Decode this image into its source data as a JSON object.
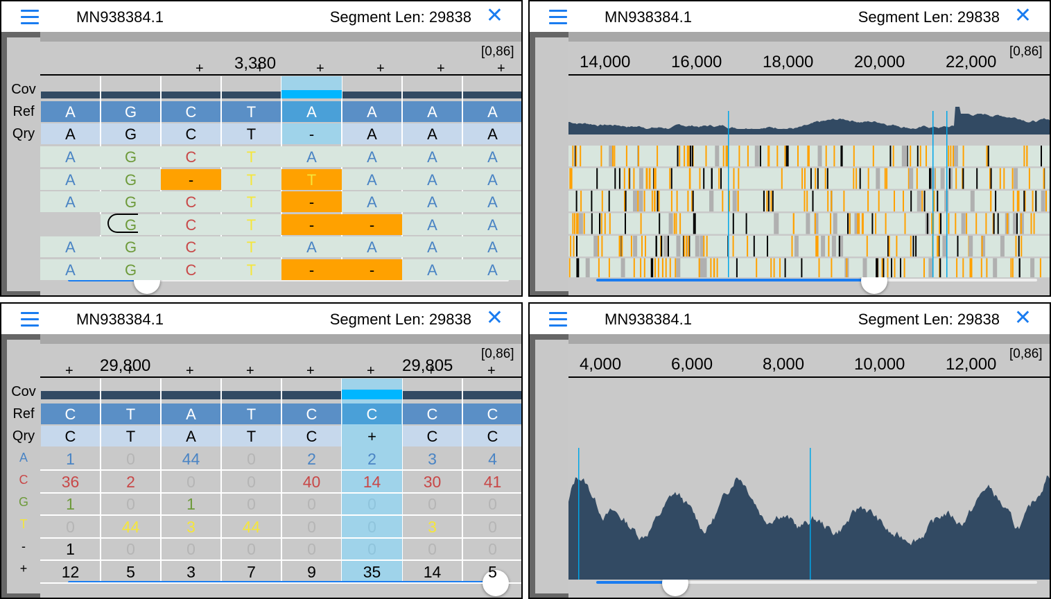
{
  "colors": {
    "accent": "#1a7cf0",
    "ref": "#5a8fc6",
    "qry": "#c6d8ec",
    "highlight": "#9fd3ea",
    "coverage": "#324a63",
    "insert": "#ffa100",
    "read_bg": "#d8e6de",
    "base_A": "#4a84c4",
    "base_C": "#c84848",
    "base_G": "#6d9a3a",
    "base_T": "#f5e63a"
  },
  "panels": [
    {
      "title": "MN938384.1",
      "segment_len": "Segment Len: 29838",
      "range": "[0,86]"
    },
    {
      "title": "MN938384.1",
      "segment_len": "Segment Len: 29838",
      "range": "[0,86]"
    },
    {
      "title": "MN938384.1",
      "segment_len": "Segment Len: 29838",
      "range": "[0,86]"
    },
    {
      "title": "MN938384.1",
      "segment_len": "Segment Len: 29838",
      "range": "[0,86]"
    }
  ],
  "icons": {
    "menu": "hamburger-icon",
    "close": "close-icon"
  },
  "p1": {
    "row_labels": [
      "Cov",
      "Ref",
      "Qry"
    ],
    "position_label": "3,380",
    "tick_marks": [
      "+",
      "+",
      "+",
      "+",
      "+",
      "+"
    ],
    "ref": [
      "A",
      "G",
      "C",
      "T",
      "A",
      "A",
      "A",
      "A"
    ],
    "qry": [
      "A",
      "G",
      "C",
      "T",
      "-",
      "A",
      "A",
      "A"
    ],
    "reads": [
      [
        "A",
        "G",
        "C",
        "T",
        "A",
        "A",
        "A",
        "A"
      ],
      [
        "A",
        "G",
        "-",
        "T",
        "T",
        "A",
        "A",
        "A"
      ],
      [
        "A",
        "G",
        "C",
        "T",
        "-",
        "A",
        "A",
        "A"
      ],
      [
        "",
        "G",
        "C",
        "T",
        "-",
        "-",
        "A",
        "A"
      ],
      [
        "A",
        "G",
        "C",
        "T",
        "A",
        "A",
        "A",
        "A"
      ],
      [
        "A",
        "G",
        "C",
        "T",
        "-",
        "-",
        "A",
        "A"
      ]
    ],
    "slider": 0.18
  },
  "p2": {
    "axis_ticks": [
      "14,000",
      "16,000",
      "18,000",
      "20,000",
      "22,000"
    ],
    "slider": 0.63
  },
  "p3": {
    "row_labels": [
      "Cov",
      "Ref",
      "Qry",
      "A",
      "C",
      "G",
      "T",
      "-",
      "+"
    ],
    "position_labels": [
      "29,800",
      "29,805"
    ],
    "tick_marks": [
      "+",
      "+",
      "+",
      "+",
      "+",
      "+",
      "+",
      "+"
    ],
    "ref": [
      "C",
      "T",
      "A",
      "T",
      "C",
      "C",
      "C",
      "C"
    ],
    "qry": [
      "C",
      "T",
      "A",
      "T",
      "C",
      "+",
      "C",
      "C"
    ],
    "counts": {
      "A": [
        "1",
        "0",
        "44",
        "0",
        "2",
        "2",
        "3",
        "4"
      ],
      "C": [
        "36",
        "2",
        "0",
        "0",
        "40",
        "14",
        "30",
        "41"
      ],
      "G": [
        "1",
        "0",
        "1",
        "0",
        "0",
        "0",
        "0",
        "0"
      ],
      "T": [
        "0",
        "44",
        "3",
        "44",
        "0",
        "0",
        "3",
        "0"
      ],
      "-": [
        "1",
        "0",
        "0",
        "0",
        "0",
        "0",
        "0",
        "0"
      ],
      "+": [
        "12",
        "5",
        "3",
        "7",
        "9",
        "35",
        "14",
        "5"
      ]
    },
    "slider": 0.97
  },
  "p4": {
    "axis_ticks": [
      "4,000",
      "6,000",
      "8,000",
      "10,000",
      "12,000"
    ],
    "slider": 0.18
  }
}
